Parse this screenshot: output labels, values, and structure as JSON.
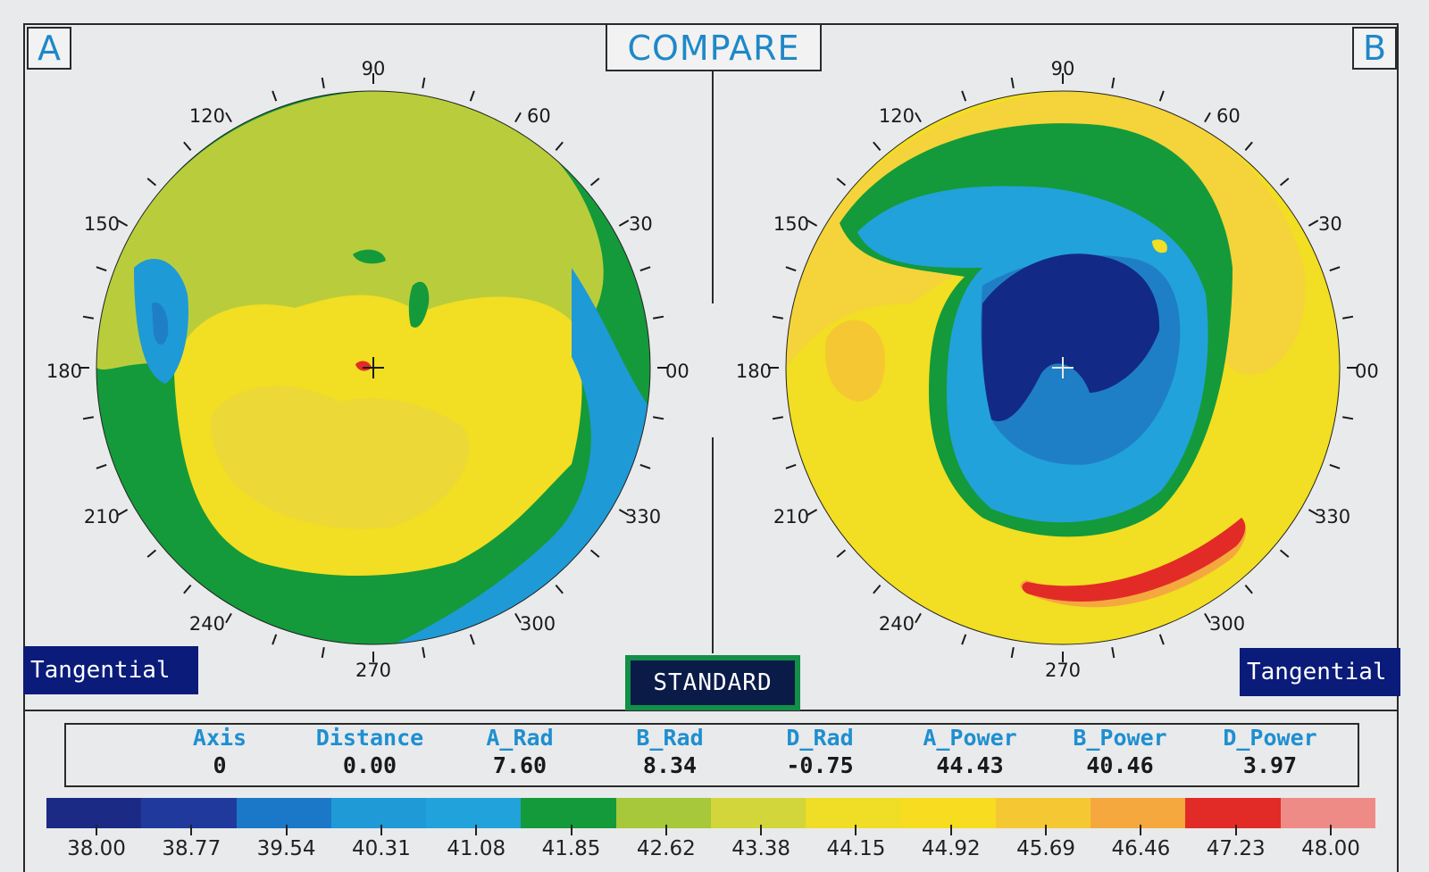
{
  "title": "COMPARE",
  "panel_a": {
    "label": "A",
    "mode_label": "Tangential"
  },
  "panel_b": {
    "label": "B",
    "mode_label": "Tangential"
  },
  "scale_mode": "STANDARD",
  "degree_labels": [
    "90",
    "60",
    "30",
    "00",
    "330",
    "300",
    "270",
    "240",
    "210",
    "180",
    "150",
    "120"
  ],
  "stats": [
    {
      "header": "Axis",
      "value": "0"
    },
    {
      "header": "Distance",
      "value": "0.00"
    },
    {
      "header": "A_Rad",
      "value": "7.60"
    },
    {
      "header": "B_Rad",
      "value": "8.34"
    },
    {
      "header": "D_Rad",
      "value": "-0.75"
    },
    {
      "header": "A_Power",
      "value": "44.43"
    },
    {
      "header": "B_Power",
      "value": "40.46"
    },
    {
      "header": "D_Power",
      "value": "3.97"
    }
  ],
  "color_scale": {
    "labels": [
      "38.00",
      "38.77",
      "39.54",
      "40.31",
      "41.08",
      "41.85",
      "42.62",
      "43.38",
      "44.15",
      "44.92",
      "45.69",
      "46.46",
      "47.23",
      "48.00"
    ],
    "colors": [
      "#1b2a85",
      "#1f3a9c",
      "#1b78c8",
      "#1f9ad6",
      "#22a2db",
      "#149a3a",
      "#a6c83a",
      "#d3d63a",
      "#f0dd26",
      "#f7dc20",
      "#f5c833",
      "#f5a83e",
      "#e22b27",
      "#ee8b87"
    ]
  },
  "icons": {
    "center_marker": "crosshair-icon"
  }
}
